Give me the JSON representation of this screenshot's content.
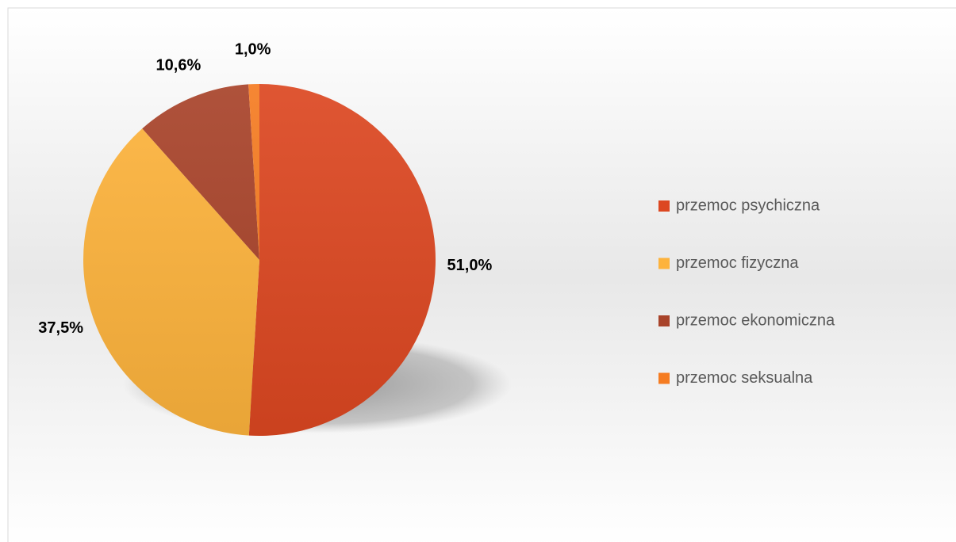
{
  "chart_data": {
    "type": "pie",
    "categories": [
      "przemoc psychiczna",
      "przemoc fizyczna",
      "przemoc ekonomiczna",
      "przemoc seksualna"
    ],
    "values": [
      51.0,
      37.5,
      10.6,
      1.0
    ],
    "value_labels": [
      "51,0%",
      "37,5%",
      "10,6%",
      "1,0%"
    ],
    "colors": [
      "#dc4721",
      "#fdb33c",
      "#a8432a",
      "#f57c22"
    ],
    "legend": "right"
  }
}
